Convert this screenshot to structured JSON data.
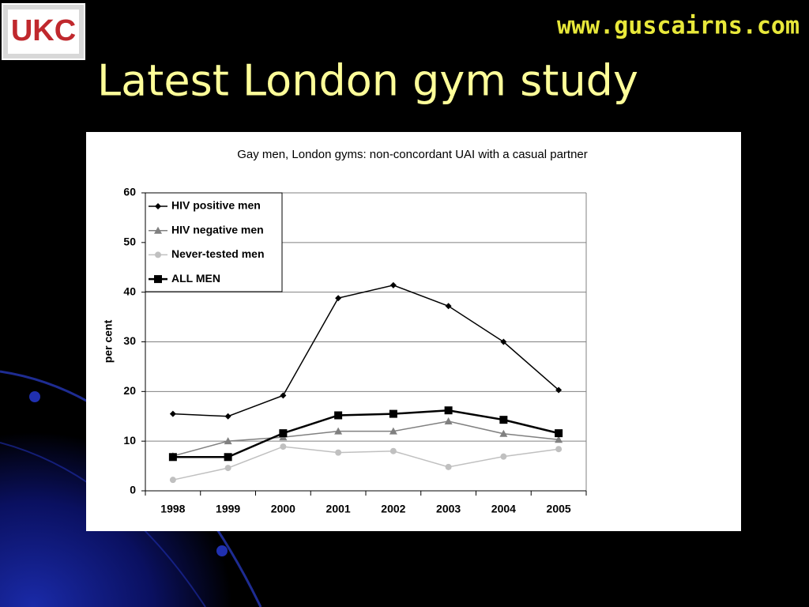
{
  "logo": "UKC",
  "header": {
    "url": "www.guscairns.com",
    "title": "Latest London gym study"
  },
  "chart_data": {
    "type": "line",
    "title": "Gay men, London gyms: non-concordant UAI with a casual partner",
    "ylabel": "per cent",
    "categories": [
      "1998",
      "1999",
      "2000",
      "2001",
      "2002",
      "2003",
      "2004",
      "2005"
    ],
    "series": [
      {
        "name": "HIV positive men",
        "color": "#000000",
        "marker": "diamond",
        "values": [
          15.5,
          15,
          19.2,
          38.8,
          41.4,
          37.2,
          30,
          20.3
        ]
      },
      {
        "name": "HIV negative men",
        "color": "#808080",
        "marker": "triangle",
        "values": [
          7,
          10,
          10.8,
          12,
          12,
          14,
          11.5,
          10.3
        ]
      },
      {
        "name": "Never-tested men",
        "color": "#c0c0c0",
        "marker": "circle",
        "values": [
          2.2,
          4.6,
          8.9,
          7.7,
          8,
          4.8,
          6.9,
          8.4
        ]
      },
      {
        "name": "ALL MEN",
        "color": "#000000",
        "marker": "square",
        "values": [
          6.8,
          6.8,
          11.6,
          15.2,
          15.5,
          16.2,
          14.3,
          11.6
        ]
      }
    ],
    "ylim": [
      0,
      60
    ],
    "yticks": [
      0,
      10,
      20,
      30,
      40,
      50,
      60
    ],
    "grid": true,
    "legend": "top-left"
  }
}
